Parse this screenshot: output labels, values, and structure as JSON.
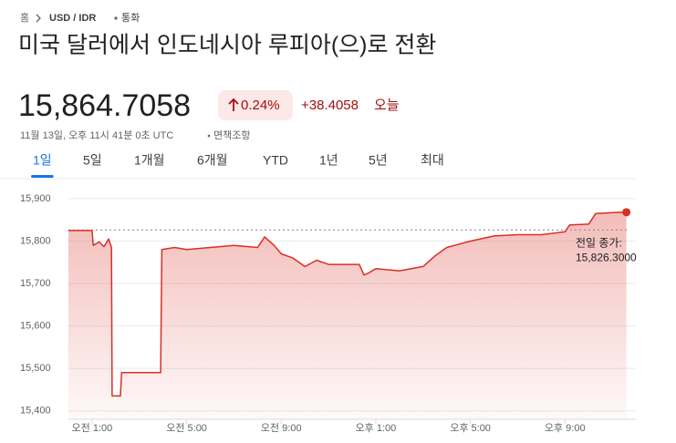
{
  "breadcrumb": [
    "홈",
    "USD / IDR",
    "통화"
  ],
  "title": "미국 달러에서 인도네시아 루피아(으)로 전환",
  "price": "15,864.7058",
  "change_percent": "0.24%",
  "change_value": "+38.4058",
  "change_period": "오늘",
  "timestamp": "11월 13일, 오후 11시 41분 0초 UTC",
  "disclaimer": "면책조항",
  "tabs": [
    "1일",
    "5일",
    "1개월",
    "6개월",
    "YTD",
    "1년",
    "5년",
    "최대"
  ],
  "active_tab": 0,
  "chart_data": {
    "type": "line",
    "color": "#d93025",
    "x": [
      0,
      1.0,
      1.05,
      1.3,
      1.5,
      1.7,
      1.82,
      1.85,
      2.2,
      2.25,
      3.9,
      3.95,
      4.5,
      5,
      6,
      7,
      8,
      8.3,
      8.7,
      9,
      9.5,
      10,
      10.5,
      11,
      12,
      12.3,
      12.5,
      12.7,
      13,
      14,
      15,
      15.5,
      16,
      17,
      18,
      19,
      20,
      21,
      21.2,
      22,
      22.3,
      23.3,
      23.6
    ],
    "values": [
      15825,
      15825,
      15790,
      15798,
      15787,
      15805,
      15785,
      15435,
      15435,
      15490,
      15490,
      15780,
      15785,
      15780,
      15785,
      15790,
      15785,
      15810,
      15790,
      15770,
      15760,
      15740,
      15755,
      15745,
      15745,
      15745,
      15720,
      15725,
      15735,
      15730,
      15740,
      15765,
      15785,
      15800,
      15812,
      15815,
      15815,
      15822,
      15838,
      15840,
      15865,
      15868,
      15868
    ],
    "xlim": [
      0,
      24
    ],
    "ylim": [
      15380,
      15930
    ],
    "xticks": [
      {
        "value": 1,
        "label": "오전 1:00"
      },
      {
        "value": 5,
        "label": "오전 5:00"
      },
      {
        "value": 9,
        "label": "오전 9:00"
      },
      {
        "value": 13,
        "label": "오후 1:00"
      },
      {
        "value": 17,
        "label": "오후 5:00"
      },
      {
        "value": 21,
        "label": "오후 9:00"
      }
    ],
    "yticks": [
      {
        "value": 15400,
        "label": "15,400"
      },
      {
        "value": 15500,
        "label": "15,500"
      },
      {
        "value": 15600,
        "label": "15,600"
      },
      {
        "value": 15700,
        "label": "15,700"
      },
      {
        "value": 15800,
        "label": "15,800"
      },
      {
        "value": 15900,
        "label": "15,900"
      }
    ],
    "grid": true,
    "reference_line": {
      "value": 15826.3,
      "label": "15,826.3000",
      "name": "전일 종가:"
    }
  }
}
